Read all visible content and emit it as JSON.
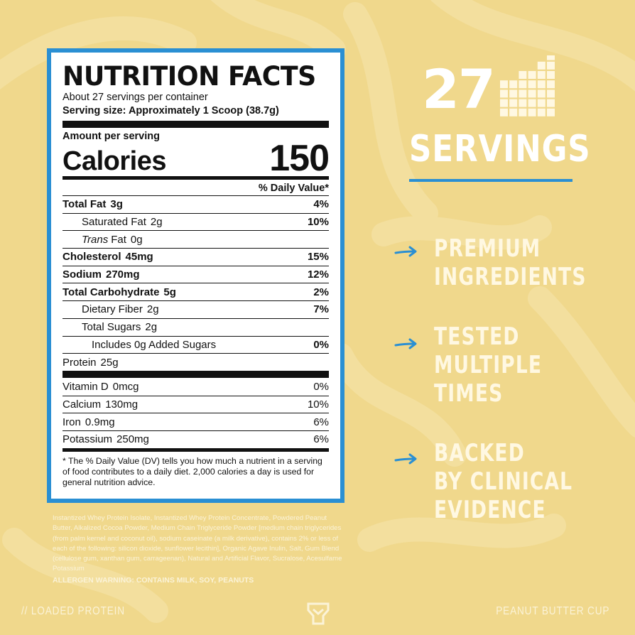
{
  "nutrition": {
    "title": "NUTRITION FACTS",
    "servings_per_container": "About 27 servings per container",
    "serving_size": "Serving size: Approximately 1 Scoop (38.7g)",
    "amount_per_serving": "Amount per serving",
    "calories_label": "Calories",
    "calories_value": "150",
    "dv_header": "% Daily Value*",
    "rows": [
      {
        "label": "Total Fat",
        "amount": "3g",
        "dv": "4%"
      },
      {
        "label": "Saturated Fat",
        "amount": "2g",
        "dv": "10%"
      },
      {
        "label": "Trans",
        "label2": "Fat",
        "amount": "0g",
        "dv": ""
      },
      {
        "label": "Cholesterol",
        "amount": "45mg",
        "dv": "15%"
      },
      {
        "label": "Sodium",
        "amount": "270mg",
        "dv": "12%"
      },
      {
        "label": "Total Carbohydrate",
        "amount": "5g",
        "dv": "2%"
      },
      {
        "label": "Dietary Fiber",
        "amount": "2g",
        "dv": "7%"
      },
      {
        "label": "Total Sugars",
        "amount": "2g",
        "dv": ""
      },
      {
        "label": "Includes 0g Added Sugars",
        "amount": "",
        "dv": "0%"
      },
      {
        "label": "Protein",
        "amount": "25g",
        "dv": ""
      }
    ],
    "vitamins": [
      {
        "label": "Vitamin D",
        "amount": "0mcg",
        "dv": "0%"
      },
      {
        "label": "Calcium",
        "amount": "130mg",
        "dv": "10%"
      },
      {
        "label": "Iron",
        "amount": "0.9mg",
        "dv": "6%"
      },
      {
        "label": "Potassium",
        "amount": "250mg",
        "dv": "6%"
      }
    ],
    "footnote": "* The % Daily Value (DV) tells you how much a nutrient in a serving of food contributes to a daily diet. 2,000 calories a day is used for general nutrition advice."
  },
  "ingredients": {
    "text": "Instantized Whey Protein Isolate, Instantized Whey Protein Concentrate, Powdered Peanut Butter, Alkalized Cocoa Powder, Medium Chain Triglyceride Powder [medium chain triglycerides (from palm kernel and coconut oil), sodium caseinate (a milk derivative), contains 2% or less of each of the following: silicon dioxide, sunflower lecithin], Organic Agave Inulin, Salt, Gum Blend (cellulose gum, xanthan gum, carrageenan), Natural and Artificial Flavor, Sucralose, Acesulfame Potassium",
    "allergen": "ALLERGEN WARNING: CONTAINS MILK, SOY, PEANUTS"
  },
  "highlights": {
    "servings_number": "27",
    "servings_label": "SERVINGS",
    "features": [
      "PREMIUM\nINGREDIENTS",
      "TESTED\nMULTIPLE\nTIMES",
      "BACKED\nBY CLINICAL\nEVIDENCE"
    ]
  },
  "footer": {
    "left": "// LOADED PROTEIN",
    "right": "PEANUT BUTTER CUP"
  },
  "colors": {
    "background": "#f0d88c",
    "accent_blue": "#2a8fd3",
    "text_light": "#fbf3d8"
  }
}
